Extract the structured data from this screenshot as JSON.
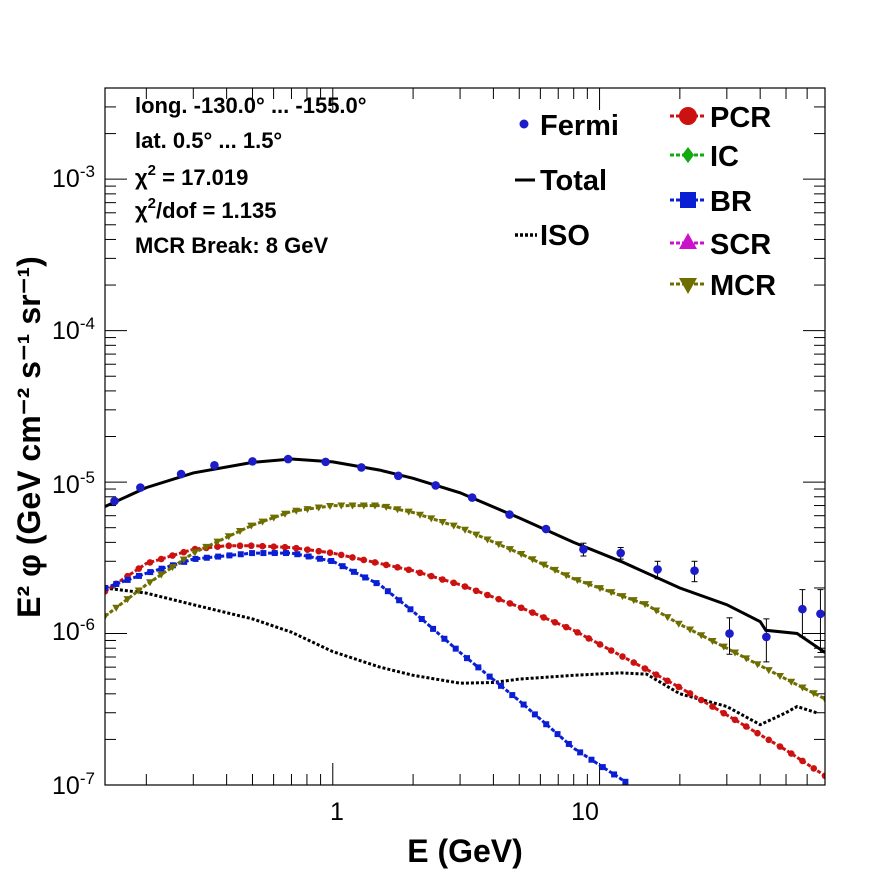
{
  "chart_data": {
    "type": "line",
    "xscale": "log",
    "yscale": "log",
    "xlim": [
      0.14,
      70
    ],
    "ylim": [
      1e-07,
      0.004
    ],
    "xlabel": "E (GeV)",
    "ylabel": "E² φ (GeV cm⁻² s⁻¹ sr⁻¹)",
    "x_tick_labels": [
      {
        "value": 1,
        "text": "1"
      },
      {
        "value": 10,
        "text": "10"
      }
    ],
    "y_tick_labels": [
      {
        "value": 1e-07,
        "base": "10",
        "exp": "-7"
      },
      {
        "value": 1e-06,
        "base": "10",
        "exp": "-6"
      },
      {
        "value": 1e-05,
        "base": "10",
        "exp": "-5"
      },
      {
        "value": 0.0001,
        "base": "10",
        "exp": "-4"
      },
      {
        "value": 0.001,
        "base": "10",
        "exp": "-3"
      }
    ],
    "annotations": {
      "longitude": "long. -130.0° ... -155.0°",
      "latitude": "lat. 0.5° ... 1.5°",
      "chi2_symbol": "χ",
      "chi2_text": " = 17.019",
      "chi2dof_symbol": "χ",
      "chi2dof_text": "/dof = 1.135",
      "superscript_two": "2",
      "mcr_break": "MCR Break:  8 GeV"
    },
    "fermi": {
      "name": "Fermi",
      "color": "#1c1cc8",
      "x": [
        0.152,
        0.19,
        0.27,
        0.36,
        0.5,
        0.68,
        0.94,
        1.28,
        1.76,
        2.43,
        3.33,
        4.6,
        6.3,
        8.7,
        12.0,
        16.5,
        22.7,
        30.7,
        42.2,
        57.6,
        67.3
      ],
      "y": [
        7.5e-06,
        9.2e-06,
        1.13e-05,
        1.29e-05,
        1.37e-05,
        1.42e-05,
        1.36e-05,
        1.25e-05,
        1.1e-05,
        9.5e-06,
        7.9e-06,
        6.1e-06,
        4.9e-06,
        3.6e-06,
        3.4e-06,
        2.65e-06,
        2.6e-06,
        1e-06,
        9.5e-07,
        1.45e-06,
        1.35e-06
      ],
      "y_err_low": [
        0,
        0,
        0,
        0,
        0,
        0,
        0,
        0,
        0,
        0,
        0,
        0,
        0,
        3.5e-07,
        3e-07,
        3.5e-07,
        4e-07,
        2.7e-07,
        3e-07,
        5e-07,
        6e-07
      ],
      "y_err_high": [
        0,
        0,
        0,
        0,
        0,
        0,
        0,
        0,
        0,
        0,
        0,
        0,
        0,
        3.5e-07,
        3e-07,
        3.5e-07,
        4e-07,
        2.7e-07,
        3e-07,
        5e-07,
        6e-07
      ]
    },
    "series": [
      {
        "name": "Total",
        "style": "solid",
        "marker": "none",
        "color": "#000000",
        "x": [
          0.14,
          0.2,
          0.3,
          0.5,
          0.7,
          1.0,
          1.5,
          2.0,
          3.0,
          5.0,
          8.0,
          12.0,
          20.0,
          30.0,
          40.0,
          42.0,
          55.0,
          70.0
        ],
        "y": [
          6.9e-06,
          9.2e-06,
          1.15e-05,
          1.35e-05,
          1.42e-05,
          1.36e-05,
          1.2e-05,
          1.06e-05,
          8.5e-06,
          5.8e-06,
          4e-06,
          3e-06,
          2e-06,
          1.55e-06,
          1.2e-06,
          1.05e-06,
          1e-06,
          7.5e-07
        ]
      },
      {
        "name": "ISO",
        "style": "dotted",
        "marker": "none",
        "color": "#000000",
        "x": [
          0.14,
          0.2,
          0.3,
          0.5,
          0.7,
          1.0,
          1.5,
          2.0,
          3.0,
          4.0,
          5.0,
          8.0,
          12.0,
          15.0,
          20.0,
          30.0,
          40.0,
          50.0,
          55.0,
          65.0
        ],
        "y": [
          2e-06,
          1.85e-06,
          1.55e-06,
          1.25e-06,
          1.02e-06,
          7.6e-07,
          6e-07,
          5.3e-07,
          4.7e-07,
          4.75e-07,
          5e-07,
          5.3e-07,
          5.5e-07,
          5.4e-07,
          4e-07,
          3.3e-07,
          2.5e-07,
          3e-07,
          3.3e-07,
          3e-07
        ]
      },
      {
        "name": "PCR",
        "style": "dashed",
        "marker": "circle",
        "color": "#cc1111",
        "x": [
          0.14,
          0.2,
          0.3,
          0.4,
          0.5,
          0.7,
          1.0,
          1.5,
          2.0,
          3.0,
          5.0,
          8.0,
          10.0,
          15.0,
          20.0,
          30.0,
          50.0,
          70.0
        ],
        "y": [
          1.9e-06,
          2.9e-06,
          3.6e-06,
          3.8e-06,
          3.8e-06,
          3.7e-06,
          3.4e-06,
          2.9e-06,
          2.6e-06,
          2.1e-06,
          1.5e-06,
          1.05e-06,
          8.5e-07,
          5.8e-07,
          4.4e-07,
          2.9e-07,
          1.7e-07,
          1.15e-07
        ]
      },
      {
        "name": "IC",
        "style": "dashed",
        "marker": "diamond",
        "color": "#11aa11",
        "x": [],
        "y": []
      },
      {
        "name": "BR",
        "style": "dashed",
        "marker": "square",
        "color": "#0a1fd4",
        "x": [
          0.14,
          0.2,
          0.3,
          0.5,
          0.7,
          1.0,
          1.5,
          2.0,
          3.0,
          5.0,
          8.0,
          12.5
        ],
        "y": [
          2e-06,
          2.5e-06,
          3.1e-06,
          3.4e-06,
          3.4e-06,
          3e-06,
          2.1e-06,
          1.4e-06,
          7.5e-07,
          3.6e-07,
          1.75e-07,
          1.05e-07
        ]
      },
      {
        "name": "SCR",
        "style": "dashed",
        "marker": "triangle-up",
        "color": "#cc11cc",
        "x": [],
        "y": []
      },
      {
        "name": "MCR",
        "style": "dashed",
        "marker": "triangle-down",
        "color": "#6e6e00",
        "x": [
          0.14,
          0.2,
          0.3,
          0.5,
          0.7,
          1.0,
          1.5,
          2.0,
          3.0,
          5.0,
          8.0,
          15.0,
          20.0,
          30.0,
          50.0,
          70.0
        ],
        "y": [
          1.3e-06,
          2.1e-06,
          3.4e-06,
          5.2e-06,
          6.4e-06,
          7e-06,
          7e-06,
          6.3e-06,
          5e-06,
          3.4e-06,
          2.3e-06,
          1.55e-06,
          1.15e-06,
          8e-07,
          5e-07,
          3.7e-07
        ]
      }
    ],
    "legend_left": [
      "Fermi",
      "Total",
      "ISO"
    ],
    "legend_right": [
      "PCR",
      "IC",
      "BR",
      "SCR",
      "MCR"
    ]
  }
}
